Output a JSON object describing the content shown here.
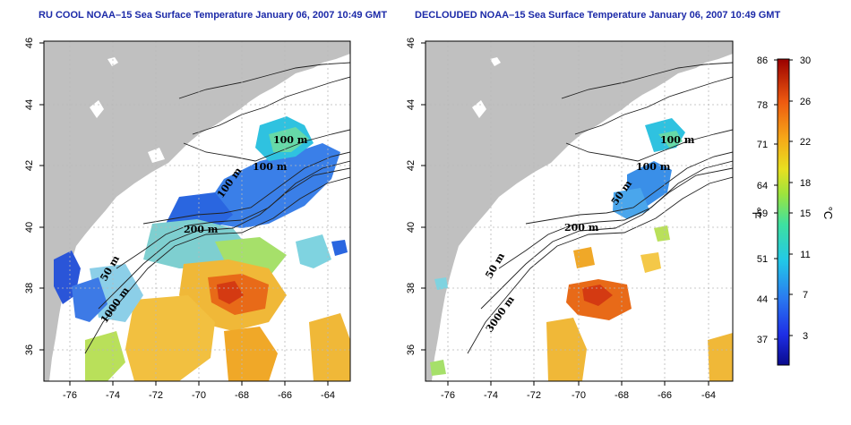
{
  "panels": [
    {
      "id": "left",
      "title": "RU COOL NOAA–15 Sea Surface Temperature January 06, 2007 10:49 GMT",
      "contour_labels": [
        "100 m",
        "100 m",
        "100 m",
        "200 m",
        "50 m",
        "1000 m"
      ]
    },
    {
      "id": "right",
      "title": "DECLOUDED NOAA–15 Sea Surface Temperature January 06, 2007 10:49 GMT",
      "contour_labels": [
        "100 m",
        "100 m",
        "50 m",
        "200 m",
        "50 m",
        "3000 m"
      ]
    }
  ],
  "axes": {
    "x_ticks": [
      "-76",
      "-74",
      "-72",
      "-70",
      "-68",
      "-66",
      "-64"
    ],
    "y_ticks": [
      "46",
      "44",
      "42",
      "40",
      "38",
      "36"
    ]
  },
  "colorbar": {
    "fahrenheit_ticks": [
      "86",
      "78",
      "71",
      "64",
      "59",
      "51",
      "44",
      "37"
    ],
    "celsius_ticks": [
      "30",
      "26",
      "22",
      "18",
      "15",
      "11",
      "7",
      "3"
    ],
    "left_unit": "°F",
    "right_unit": "°C"
  },
  "colors": {
    "land": "#c0c0c0",
    "title": "#1c2aa8",
    "grid": "#b8b8b8"
  }
}
